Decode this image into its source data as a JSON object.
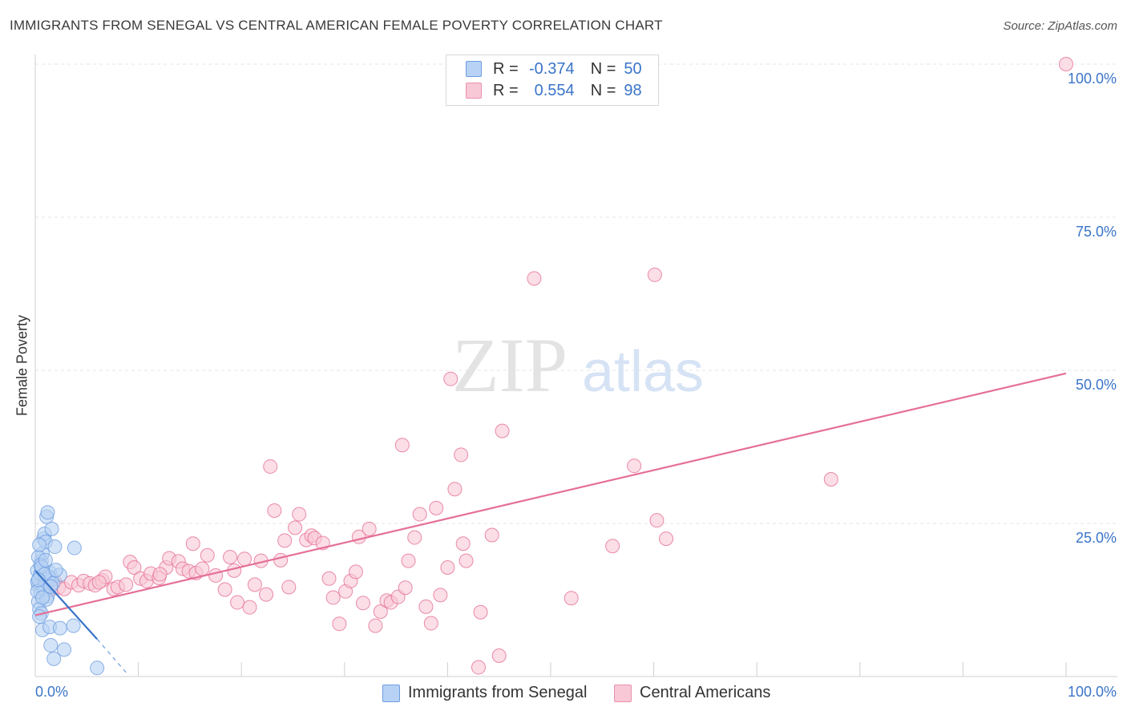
{
  "title": "IMMIGRANTS FROM SENEGAL VS CENTRAL AMERICAN FEMALE POVERTY CORRELATION CHART",
  "source": "Source: ZipAtlas.com",
  "watermark": {
    "zip": "ZIP",
    "atlas": "atlas"
  },
  "legend": {
    "r_label": "R =",
    "n_label": "N =",
    "rows": [
      {
        "name": "senegal",
        "r": "-0.374",
        "n": "50",
        "color": "#b7d2f4"
      },
      {
        "name": "central",
        "r": "0.554",
        "n": "98",
        "color": "#f8c8d6"
      }
    ]
  },
  "bottom_legend": {
    "senegal": "Immigrants from Senegal",
    "central": "Central Americans"
  },
  "chart_data": {
    "type": "scatter",
    "title": "IMMIGRANTS FROM SENEGAL VS CENTRAL AMERICAN FEMALE POVERTY CORRELATION CHART",
    "xlabel": "",
    "ylabel": "Female Poverty",
    "xlim": [
      0,
      100
    ],
    "ylim": [
      0,
      100
    ],
    "x_tick_labels": [
      "0.0%",
      "100.0%"
    ],
    "y_ticks": [
      25,
      50,
      75,
      100
    ],
    "y_tick_labels": [
      "25.0%",
      "50.0%",
      "75.0%",
      "100.0%"
    ],
    "grid": true,
    "legend_placement": "top-center",
    "series": [
      {
        "name": "Immigrants from Senegal",
        "color": "#6e9de0",
        "fill": "#b7d2f4",
        "r": -0.374,
        "n": 50,
        "points": [
          [
            0.2,
            17.3
          ],
          [
            0.4,
            16.1
          ],
          [
            0.3,
            14.8
          ],
          [
            0.5,
            13.6
          ],
          [
            0.6,
            18.9
          ],
          [
            0.7,
            20.1
          ],
          [
            0.8,
            22.5
          ],
          [
            0.9,
            23.3
          ],
          [
            1.0,
            22.0
          ],
          [
            1.1,
            26.1
          ],
          [
            1.2,
            26.8
          ],
          [
            1.6,
            24.1
          ],
          [
            1.9,
            21.2
          ],
          [
            0.3,
            12.2
          ],
          [
            0.4,
            11.0
          ],
          [
            0.6,
            10.3
          ],
          [
            0.2,
            15.5
          ],
          [
            0.5,
            16.8
          ],
          [
            0.7,
            17.6
          ],
          [
            0.9,
            15.0
          ],
          [
            1.0,
            14.2
          ],
          [
            1.2,
            13.1
          ],
          [
            1.4,
            17.0
          ],
          [
            1.6,
            15.9
          ],
          [
            2.4,
            16.6
          ],
          [
            0.4,
            9.8
          ],
          [
            0.7,
            7.6
          ],
          [
            1.4,
            8.1
          ],
          [
            2.4,
            7.9
          ],
          [
            3.7,
            8.3
          ],
          [
            3.8,
            21.0
          ],
          [
            1.5,
            5.1
          ],
          [
            2.8,
            4.4
          ],
          [
            1.8,
            2.9
          ],
          [
            6.0,
            1.4
          ],
          [
            0.3,
            19.5
          ],
          [
            0.5,
            18.2
          ],
          [
            0.8,
            14.4
          ],
          [
            1.1,
            12.6
          ],
          [
            1.3,
            16.3
          ],
          [
            0.2,
            13.9
          ],
          [
            0.6,
            17.9
          ],
          [
            0.9,
            16.7
          ],
          [
            1.0,
            19.0
          ],
          [
            1.7,
            15.2
          ],
          [
            0.4,
            21.5
          ],
          [
            0.7,
            12.9
          ],
          [
            1.5,
            14.7
          ],
          [
            2.0,
            17.4
          ],
          [
            0.3,
            15.8
          ]
        ],
        "trend": {
          "x1": 0,
          "y1": 17.3,
          "x2": 6.0,
          "y2": 6.1,
          "dash_x2": 9.0,
          "dash_y2": 0.3
        }
      },
      {
        "name": "Central Americans",
        "color": "#e56f97",
        "fill": "#f8c8d6",
        "r": 0.554,
        "n": 98,
        "points": [
          [
            0.6,
            15.0
          ],
          [
            0.9,
            13.5
          ],
          [
            1.2,
            14.8
          ],
          [
            1.5,
            14.2
          ],
          [
            1.9,
            15.5
          ],
          [
            2.3,
            14.6
          ],
          [
            2.8,
            14.3
          ],
          [
            3.5,
            15.4
          ],
          [
            4.2,
            14.9
          ],
          [
            4.7,
            15.6
          ],
          [
            5.3,
            15.2
          ],
          [
            5.8,
            14.9
          ],
          [
            6.5,
            15.7
          ],
          [
            6.8,
            16.3
          ],
          [
            7.6,
            14.3
          ],
          [
            8.0,
            14.6
          ],
          [
            8.8,
            15.0
          ],
          [
            9.2,
            18.7
          ],
          [
            9.6,
            17.8
          ],
          [
            10.2,
            16.0
          ],
          [
            10.8,
            15.6
          ],
          [
            11.2,
            16.8
          ],
          [
            12.0,
            16.1
          ],
          [
            12.7,
            17.8
          ],
          [
            13.0,
            19.3
          ],
          [
            13.9,
            18.8
          ],
          [
            14.3,
            17.6
          ],
          [
            14.9,
            17.2
          ],
          [
            15.3,
            21.7
          ],
          [
            15.6,
            16.9
          ],
          [
            16.2,
            17.6
          ],
          [
            16.7,
            19.8
          ],
          [
            17.5,
            16.5
          ],
          [
            18.4,
            14.2
          ],
          [
            18.9,
            19.5
          ],
          [
            19.3,
            17.3
          ],
          [
            19.6,
            12.1
          ],
          [
            20.3,
            19.2
          ],
          [
            20.8,
            11.3
          ],
          [
            21.3,
            15.0
          ],
          [
            21.9,
            18.9
          ],
          [
            22.4,
            13.4
          ],
          [
            22.8,
            34.3
          ],
          [
            23.2,
            27.1
          ],
          [
            23.8,
            19.0
          ],
          [
            24.2,
            22.2
          ],
          [
            24.6,
            14.6
          ],
          [
            25.2,
            24.3
          ],
          [
            25.6,
            26.5
          ],
          [
            26.3,
            22.3
          ],
          [
            26.8,
            23.0
          ],
          [
            27.1,
            22.6
          ],
          [
            27.9,
            21.8
          ],
          [
            28.5,
            16.0
          ],
          [
            28.9,
            12.9
          ],
          [
            29.5,
            8.6
          ],
          [
            30.1,
            13.9
          ],
          [
            30.6,
            15.6
          ],
          [
            31.1,
            17.1
          ],
          [
            31.4,
            22.8
          ],
          [
            31.8,
            12.0
          ],
          [
            32.4,
            24.1
          ],
          [
            33.0,
            8.3
          ],
          [
            33.5,
            10.6
          ],
          [
            34.1,
            12.4
          ],
          [
            34.5,
            12.1
          ],
          [
            35.2,
            13.0
          ],
          [
            35.6,
            37.8
          ],
          [
            35.9,
            14.5
          ],
          [
            36.2,
            18.9
          ],
          [
            36.8,
            22.7
          ],
          [
            37.3,
            26.5
          ],
          [
            37.9,
            11.4
          ],
          [
            38.4,
            8.7
          ],
          [
            38.9,
            27.5
          ],
          [
            39.3,
            13.3
          ],
          [
            40.0,
            17.8
          ],
          [
            40.3,
            48.6
          ],
          [
            40.7,
            30.6
          ],
          [
            41.3,
            36.2
          ],
          [
            41.5,
            21.7
          ],
          [
            41.8,
            18.9
          ],
          [
            43.0,
            1.5
          ],
          [
            43.2,
            10.5
          ],
          [
            44.3,
            23.1
          ],
          [
            45.0,
            3.4
          ],
          [
            45.3,
            40.1
          ],
          [
            48.4,
            65.0
          ],
          [
            52.0,
            12.8
          ],
          [
            56.0,
            21.3
          ],
          [
            58.1,
            34.4
          ],
          [
            60.3,
            25.5
          ],
          [
            60.1,
            65.6
          ],
          [
            61.2,
            22.5
          ],
          [
            77.2,
            32.2
          ],
          [
            100.0,
            100.0
          ],
          [
            6.2,
            15.4
          ],
          [
            12.1,
            16.7
          ]
        ],
        "trend": {
          "x1": 0,
          "y1": 10.0,
          "x2": 100,
          "y2": 49.5
        }
      }
    ]
  }
}
